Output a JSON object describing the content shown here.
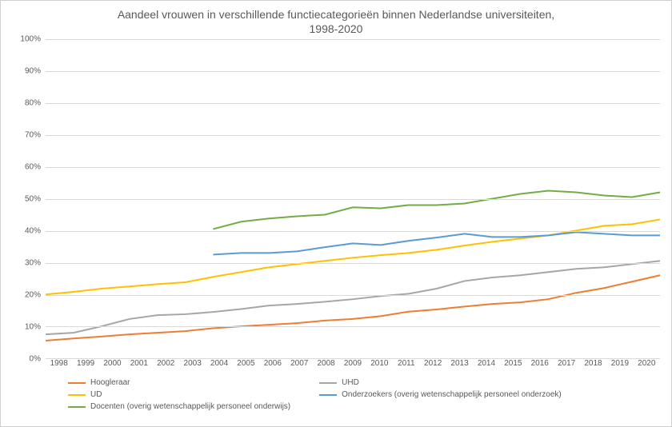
{
  "chart": {
    "type": "line",
    "title_line1": "Aandeel vrouwen in verschillende functiecategorieën binnen Nederlandse universiteiten,",
    "title_line2": "1998-2020",
    "title_fontsize": 14,
    "title_color": "#595959",
    "background_color": "#ffffff",
    "border_color": "#d0d0d0",
    "grid_color": "#d9d9d9",
    "axis_label_color": "#595959",
    "axis_label_fontsize": 10,
    "xlim": [
      1998,
      2020
    ],
    "ylim": [
      0,
      100
    ],
    "ytick_step": 10,
    "ytick_suffix": "%",
    "yticks": [
      0,
      10,
      20,
      30,
      40,
      50,
      60,
      70,
      80,
      90,
      100
    ],
    "x_categories": [
      1998,
      1999,
      2000,
      2001,
      2002,
      2003,
      2004,
      2005,
      2006,
      2007,
      2008,
      2009,
      2010,
      2011,
      2012,
      2013,
      2014,
      2015,
      2016,
      2017,
      2018,
      2019,
      2020
    ],
    "line_width": 2,
    "series": [
      {
        "name": "Hoogleraar",
        "color": "#ed7d31",
        "x_start": 1998,
        "values": [
          5.5,
          6.2,
          6.8,
          7.5,
          8.0,
          8.5,
          9.4,
          10.0,
          10.5,
          11.0,
          11.8,
          12.3,
          13.2,
          14.6,
          15.3,
          16.2,
          17.0,
          17.5,
          18.5,
          20.5,
          22.0,
          24.0,
          26.0
        ]
      },
      {
        "name": "UHD",
        "color": "#a6a6a6",
        "x_start": 1998,
        "values": [
          7.5,
          8.0,
          10.0,
          12.3,
          13.5,
          13.8,
          14.5,
          15.4,
          16.5,
          17.0,
          17.7,
          18.5,
          19.5,
          20.2,
          21.8,
          24.2,
          25.3,
          26.0,
          27.0,
          28.0,
          28.5,
          29.5,
          30.5
        ]
      },
      {
        "name": "UD",
        "color": "#ffc000",
        "x_start": 1998,
        "values": [
          20.0,
          20.8,
          21.8,
          22.5,
          23.2,
          23.8,
          25.5,
          27.0,
          28.5,
          29.5,
          30.5,
          31.5,
          32.3,
          33.0,
          34.0,
          35.3,
          36.5,
          37.5,
          38.5,
          40.0,
          41.5,
          42.0,
          43.5
        ]
      },
      {
        "name": "Onderzoekers (overig wetenschappelijk personeel onderzoek)",
        "color": "#5b9bd5",
        "x_start": 2004,
        "values": [
          32.5,
          33.0,
          33.0,
          33.5,
          34.8,
          36.0,
          35.5,
          36.8,
          37.8,
          39.0,
          38.0,
          38.0,
          38.5,
          39.5,
          39.0,
          38.5,
          38.5
        ]
      },
      {
        "name": "Docenten (overig wetenschappelijk personeel onderwijs)",
        "color": "#70ad47",
        "x_start": 2004,
        "values": [
          40.5,
          42.8,
          43.8,
          44.5,
          45.0,
          47.3,
          47.0,
          48.0,
          48.0,
          48.5,
          50.0,
          51.5,
          52.5,
          52.0,
          51.0,
          50.5,
          52.0
        ]
      }
    ],
    "legend": {
      "position": "bottom",
      "fontsize": 10,
      "text_color": "#595959",
      "swatch_width": 22,
      "columns": 2
    }
  }
}
